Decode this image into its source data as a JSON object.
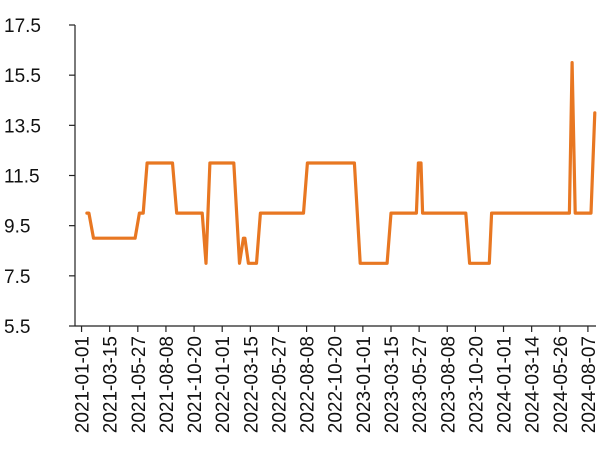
{
  "chart_data": {
    "type": "line",
    "title": "",
    "xlabel": "",
    "ylabel": "",
    "ylim": [
      5.5,
      17.5
    ],
    "y_ticks": [
      "5.5",
      "7.5",
      "9.5",
      "11.5",
      "13.5",
      "15.5",
      "17.5"
    ],
    "x_tick_labels": [
      "2021-01-01",
      "2021-03-15",
      "2021-05-27",
      "2021-08-08",
      "2021-10-20",
      "2022-01-01",
      "2022-03-15",
      "2022-05-27",
      "2022-08-08",
      "2022-10-20",
      "2023-01-01",
      "2023-03-15",
      "2023-05-27",
      "2023-08-08",
      "2023-10-20",
      "2024-01-01",
      "2024-03-14",
      "2024-05-26",
      "2024-08-07"
    ],
    "grid": false,
    "legend": "none",
    "series": [
      {
        "color": "#E87722",
        "points": [
          [
            "2021-01-15",
            10.0
          ],
          [
            "2021-01-20",
            10.0
          ],
          [
            "2021-02-01",
            9.0
          ],
          [
            "2021-05-20",
            9.0
          ],
          [
            "2021-05-31",
            10.0
          ],
          [
            "2021-06-10",
            10.0
          ],
          [
            "2021-06-20",
            12.0
          ],
          [
            "2021-08-25",
            12.0
          ],
          [
            "2021-09-05",
            10.0
          ],
          [
            "2021-11-10",
            10.0
          ],
          [
            "2021-11-20",
            8.0
          ],
          [
            "2021-11-30",
            12.0
          ],
          [
            "2022-01-31",
            12.0
          ],
          [
            "2022-02-15",
            8.0
          ],
          [
            "2022-02-25",
            9.0
          ],
          [
            "2022-03-01",
            9.0
          ],
          [
            "2022-03-10",
            8.0
          ],
          [
            "2022-03-31",
            8.0
          ],
          [
            "2022-04-10",
            10.0
          ],
          [
            "2022-07-31",
            10.0
          ],
          [
            "2022-08-10",
            12.0
          ],
          [
            "2022-12-10",
            12.0
          ],
          [
            "2022-12-25",
            8.0
          ],
          [
            "2023-03-05",
            8.0
          ],
          [
            "2023-03-15",
            10.0
          ],
          [
            "2023-05-20",
            10.0
          ],
          [
            "2023-05-25",
            12.0
          ],
          [
            "2023-06-01",
            12.0
          ],
          [
            "2023-06-05",
            10.0
          ],
          [
            "2023-09-25",
            10.0
          ],
          [
            "2023-10-05",
            8.0
          ],
          [
            "2023-11-25",
            8.0
          ],
          [
            "2023-12-01",
            10.0
          ],
          [
            "2024-06-20",
            10.0
          ],
          [
            "2024-06-27",
            16.0
          ],
          [
            "2024-07-05",
            10.0
          ],
          [
            "2024-08-15",
            10.0
          ],
          [
            "2024-08-25",
            14.0
          ]
        ]
      }
    ]
  }
}
